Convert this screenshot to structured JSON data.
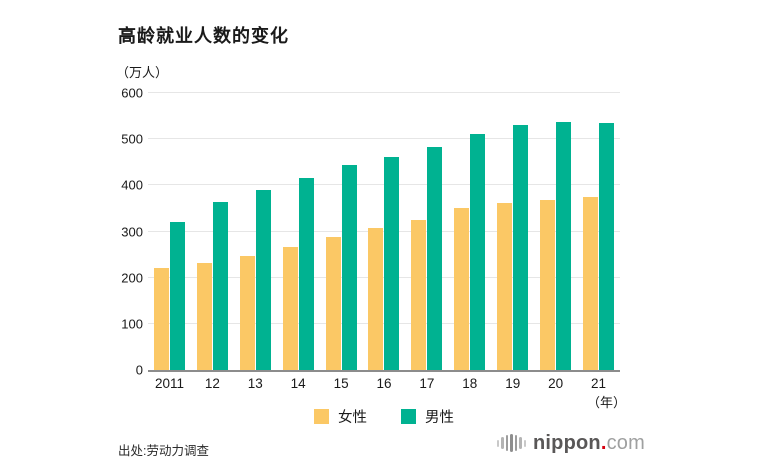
{
  "title": "高龄就业人数的变化",
  "unit_label": "（万人）",
  "x_axis_note": "（年）",
  "source": "出处:劳动力调查",
  "logo": {
    "name": "nippon",
    "dot": ".",
    "tld": "com"
  },
  "colors": {
    "female": "#FBC865",
    "male": "#00B291",
    "grid": "#E6E6E6",
    "axis": "#8C8C8C",
    "text": "#1A1A1A",
    "logo_dark": "#595757",
    "logo_light": "#9FA0A0",
    "logo_dot": "#D7000F"
  },
  "legend": {
    "items": [
      {
        "label": "女性",
        "key": "female"
      },
      {
        "label": "男性",
        "key": "male"
      }
    ]
  },
  "chart_data": {
    "type": "bar",
    "title": "高龄就业人数的变化",
    "unit": "万人",
    "categories": [
      "2011",
      "12",
      "13",
      "14",
      "15",
      "16",
      "17",
      "18",
      "19",
      "20",
      "21"
    ],
    "series": [
      {
        "name": "女性",
        "key": "female",
        "values": [
          222,
          231,
          247,
          266,
          289,
          308,
          324,
          350,
          362,
          368,
          375
        ]
      },
      {
        "name": "男性",
        "key": "male",
        "values": [
          320,
          365,
          390,
          416,
          443,
          462,
          483,
          512,
          530,
          538,
          534
        ]
      }
    ],
    "ylim": [
      0,
      600
    ],
    "yticks": [
      0,
      100,
      200,
      300,
      400,
      500,
      600
    ],
    "xlabel_suffix": "年",
    "grid": "horizontal",
    "legend_position": "bottom",
    "source": "劳动力调查"
  }
}
